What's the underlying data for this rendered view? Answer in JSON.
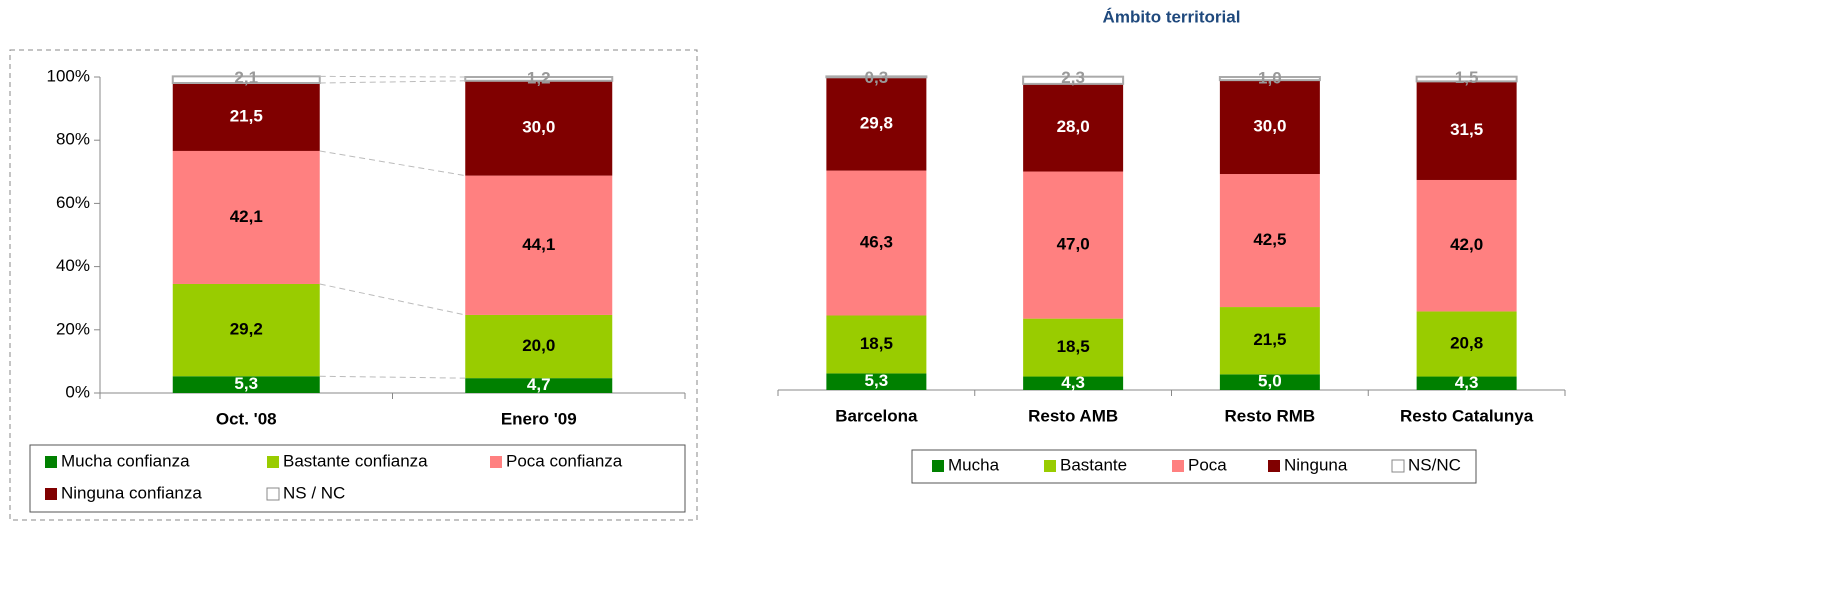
{
  "chart_data": [
    {
      "type": "bar",
      "stacked": true,
      "categories": [
        "Oct. '08",
        "Enero '09"
      ],
      "ylim": [
        0,
        100
      ],
      "yticks": [
        {
          "value": 0,
          "label": "0%"
        },
        {
          "value": 20,
          "label": "20%"
        },
        {
          "value": 40,
          "label": "40%"
        },
        {
          "value": 60,
          "label": "60%"
        },
        {
          "value": 80,
          "label": "80%"
        },
        {
          "value": 100,
          "label": "100%"
        }
      ],
      "series": [
        {
          "name": "Mucha confianza",
          "color": "#008000",
          "values": [
            5.3,
            4.7
          ],
          "value_labels": [
            "5,3",
            "4,7"
          ]
        },
        {
          "name": "Bastante confianza",
          "color": "#99cc00",
          "values": [
            29.2,
            20.0
          ],
          "value_labels": [
            "29,2",
            "20,0"
          ]
        },
        {
          "name": "Poca confianza",
          "color": "#ff8080",
          "values": [
            42.1,
            44.1
          ],
          "value_labels": [
            "42,1",
            "44,1"
          ]
        },
        {
          "name": "Ninguna confianza",
          "color": "#800000",
          "values": [
            21.5,
            30.0
          ],
          "value_labels": [
            "21,5",
            "30,0"
          ]
        },
        {
          "name": "NS / NC",
          "color": "#ffffff",
          "values": [
            2.1,
            1.2
          ],
          "value_labels": [
            "2,1",
            "1,2"
          ]
        }
      ]
    },
    {
      "type": "bar",
      "stacked": true,
      "title": "Ámbito territorial",
      "categories": [
        "Barcelona",
        "Resto AMB",
        "Resto RMB",
        "Resto Catalunya"
      ],
      "ylim": [
        0,
        100
      ],
      "series": [
        {
          "name": "Mucha",
          "color": "#008000",
          "values": [
            5.3,
            4.3,
            5.0,
            4.3
          ],
          "value_labels": [
            "5,3",
            "4,3",
            "5,0",
            "4,3"
          ]
        },
        {
          "name": "Bastante",
          "color": "#99cc00",
          "values": [
            18.5,
            18.5,
            21.5,
            20.8
          ],
          "value_labels": [
            "18,5",
            "18,5",
            "21,5",
            "20,8"
          ]
        },
        {
          "name": "Poca",
          "color": "#ff8080",
          "values": [
            46.3,
            47.0,
            42.5,
            42.0
          ],
          "value_labels": [
            "46,3",
            "47,0",
            "42,5",
            "42,0"
          ]
        },
        {
          "name": "Ninguna",
          "color": "#800000",
          "values": [
            29.8,
            28.0,
            30.0,
            31.5
          ],
          "value_labels": [
            "29,8",
            "28,0",
            "30,0",
            "31,5"
          ]
        },
        {
          "name": "NS/NC",
          "color": "#ffffff",
          "values": [
            0.3,
            2.3,
            1.0,
            1.5
          ],
          "value_labels": [
            "0,3",
            "2,3",
            "1,0",
            "1,5"
          ]
        }
      ]
    }
  ]
}
